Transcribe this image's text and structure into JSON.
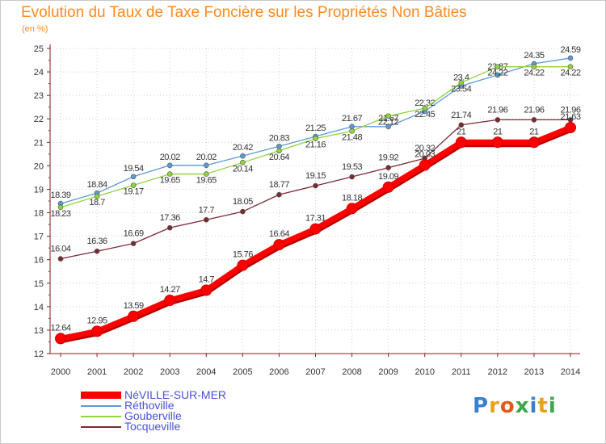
{
  "chart_data": {
    "type": "line",
    "title": "Evolution du Taux de Taxe Foncière sur les Propriétés Non Bâties",
    "ylabel": "(en %)",
    "xlabel": "",
    "ylim": [
      12,
      25
    ],
    "yticks": [
      12,
      13,
      14,
      15,
      16,
      17,
      18,
      19,
      20,
      21,
      22,
      23,
      24,
      25
    ],
    "categories": [
      "2000",
      "2001",
      "2002",
      "2003",
      "2004",
      "2005",
      "2006",
      "2007",
      "2008",
      "2009",
      "2010",
      "2011",
      "2012",
      "2013",
      "2014"
    ],
    "grid": true,
    "legend_position": "bottom-left",
    "series": [
      {
        "name": "NéVILLE-SUR-MER",
        "color": "#ff0000",
        "values": [
          12.64,
          12.95,
          13.59,
          14.27,
          14.7,
          15.76,
          16.64,
          17.31,
          18.18,
          19.09,
          20.03,
          21,
          21,
          21,
          21.63
        ],
        "labels": [
          "12.64",
          "12.95",
          "13.59",
          "14.27",
          "14.7",
          "15.76",
          "16.64",
          "17.31",
          "18.18",
          "19.09",
          "20.03",
          "21",
          "21",
          "21",
          "21.63"
        ]
      },
      {
        "name": "Réthoville",
        "color": "#5b9bd5",
        "values": [
          18.39,
          18.84,
          19.54,
          20.02,
          20.02,
          20.42,
          20.83,
          21.25,
          21.67,
          21.67,
          22.32,
          23.4,
          23.87,
          24.35,
          24.59
        ],
        "labels": [
          "18.39",
          "18.84",
          "19.54",
          "20.02",
          "20.02",
          "20.42",
          "20.83",
          "21.25",
          "21.67",
          "21.67",
          "22.32",
          "23.4",
          "23.87",
          "24.35",
          "24.59"
        ]
      },
      {
        "name": "Gouberville",
        "color": "#8fd43a",
        "values": [
          18.23,
          18.7,
          19.17,
          19.65,
          19.65,
          20.14,
          20.64,
          21.16,
          21.48,
          22.12,
          22.45,
          23.54,
          24.22,
          24.22,
          24.22
        ],
        "labels": [
          "18.23",
          "18.7",
          "19.17",
          "19.65",
          "19.65",
          "20.14",
          "20.64",
          "21.16",
          "21.48",
          "22.12",
          "22.45",
          "23.54",
          "24.22",
          "24.22",
          "24.22"
        ]
      },
      {
        "name": "Tocqueville",
        "color": "#7a2a33",
        "values": [
          16.04,
          16.36,
          16.69,
          17.36,
          17.7,
          18.05,
          18.77,
          19.15,
          19.53,
          19.92,
          20.32,
          21.74,
          21.96,
          21.96,
          21.96
        ],
        "labels": [
          "16.04",
          "16.36",
          "16.69",
          "17.36",
          "17.7",
          "18.05",
          "18.77",
          "19.15",
          "19.53",
          "19.92",
          "20.32",
          "21.74",
          "21.96",
          "21.96",
          "21.96"
        ]
      }
    ]
  },
  "legend": {
    "items": [
      "NéVILLE-SUR-MER",
      "Réthoville",
      "Gouberville",
      "Tocqueville"
    ]
  },
  "brand": {
    "letters": [
      "P",
      "r",
      "o",
      "x",
      "i",
      "t",
      "i"
    ],
    "colors": [
      "#3a7fd0",
      "#e8a21a",
      "#e05a1c",
      "#3aa84a",
      "#3a7fd0",
      "#e8a21a",
      "#3aa84a"
    ]
  }
}
